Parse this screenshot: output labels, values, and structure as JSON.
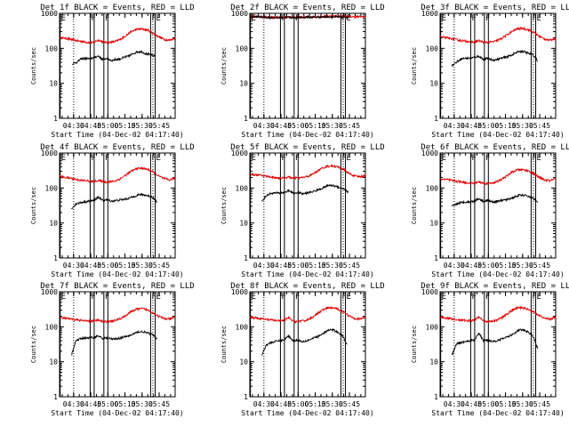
{
  "figure": {
    "title_template": "{det} BLACK = Events, RED = LLD",
    "xlabel": "Start Time (04-Dec-02 04:17:40)",
    "ylabel": "Counts/sec",
    "colors": {
      "events": "#000000",
      "lld": "#e00000",
      "axes": "#000000",
      "background": "#ffffff"
    }
  },
  "chart_data": {
    "type": "line",
    "title": "BLACK = Events, RED = LLD",
    "xlabel": "Start Time (04-Dec-02 04:17:40)",
    "ylabel": "Counts/sec",
    "yscale": "log",
    "ylim": [
      1,
      1000
    ],
    "xlim_minutes": [
      17.67,
      119.0
    ],
    "x_ticks": [
      {
        "minutes": 30,
        "label": "04:30"
      },
      {
        "minutes": 45,
        "label": "04:45"
      },
      {
        "minutes": 60,
        "label": "05:00"
      },
      {
        "minutes": 75,
        "label": "05:15"
      },
      {
        "minutes": 90,
        "label": "05:30"
      },
      {
        "minutes": 105,
        "label": "05:45"
      }
    ],
    "y_ticks": [
      {
        "value": 1,
        "label": "1"
      },
      {
        "value": 10,
        "label": "10"
      },
      {
        "value": 100,
        "label": "100"
      },
      {
        "value": 1000,
        "label": "1000"
      }
    ],
    "markers": [
      {
        "minutes": 18.2,
        "label": "E",
        "style": "solid"
      },
      {
        "minutes": 30.0,
        "label": "",
        "style": "dotted"
      },
      {
        "minutes": 44.5,
        "label": "F",
        "style": "solid"
      },
      {
        "minutes": 48.0,
        "label": "",
        "style": "solid"
      },
      {
        "minutes": 56.5,
        "label": "F",
        "style": "solid"
      },
      {
        "minutes": 60.0,
        "label": "",
        "style": "solid"
      },
      {
        "minutes": 97.5,
        "label": "F",
        "style": "solid"
      },
      {
        "minutes": 101.5,
        "label": "E",
        "style": "solid"
      },
      {
        "minutes": 99.5,
        "label": "",
        "style": "dotted"
      }
    ],
    "panels": [
      {
        "detector": "Det 1f",
        "series": [
          {
            "name": "LLD",
            "color": "red",
            "start": 18,
            "end": 119,
            "values": [
              200,
              195,
              180,
              165,
              158,
              148,
              145,
              172,
              150,
              148,
              155,
              180,
              230,
              300,
              350,
              355,
              330,
              270,
              215,
              180,
              170,
              195
            ]
          },
          {
            "name": "Events",
            "color": "black",
            "start": 29,
            "end": 101,
            "values": [
              36,
              40,
              50,
              52,
              50,
              55,
              60,
              48,
              52,
              45,
              48,
              50,
              55,
              60,
              70,
              80,
              80,
              70,
              65,
              60
            ]
          }
        ]
      },
      {
        "detector": "Det 2f",
        "series": [
          {
            "name": "LLD",
            "color": "red",
            "start": 18,
            "end": 119,
            "values": [
              800,
              800,
              790,
              780,
              770,
              760,
              760,
              780,
              770,
              770,
              780,
              790,
              800,
              810,
              820,
              830,
              820,
              810,
              800,
              800,
              800,
              800
            ]
          },
          {
            "name": "Events",
            "color": "black",
            "start": 18,
            "end": 104,
            "values": [
              810,
              800,
              790,
              780,
              760,
              750,
              760,
              770,
              760,
              760,
              770,
              775,
              780,
              785,
              790,
              800,
              790,
              780,
              775,
              770
            ]
          }
        ]
      },
      {
        "detector": "Det 3f",
        "series": [
          {
            "name": "LLD",
            "color": "red",
            "start": 18,
            "end": 119,
            "values": [
              210,
              200,
              190,
              175,
              165,
              160,
              150,
              165,
              148,
              150,
              158,
              185,
              235,
              300,
              360,
              370,
              340,
              285,
              220,
              185,
              170,
              195
            ]
          },
          {
            "name": "Events",
            "color": "black",
            "start": 28,
            "end": 103,
            "values": [
              32,
              40,
              50,
              52,
              52,
              55,
              60,
              48,
              52,
              46,
              48,
              52,
              56,
              62,
              72,
              82,
              80,
              72,
              65,
              45
            ]
          }
        ]
      },
      {
        "detector": "Det 4f",
        "series": [
          {
            "name": "LLD",
            "color": "red",
            "start": 18,
            "end": 119,
            "values": [
              210,
              200,
              190,
              175,
              165,
              160,
              150,
              165,
              148,
              150,
              158,
              185,
              235,
              300,
              360,
              370,
              340,
              285,
              220,
              185,
              170,
              195
            ]
          },
          {
            "name": "Events",
            "color": "black",
            "start": 28,
            "end": 103,
            "values": [
              25,
              35,
              38,
              40,
              42,
              44,
              55,
              44,
              46,
              42,
              44,
              46,
              48,
              52,
              58,
              64,
              64,
              60,
              55,
              40
            ]
          }
        ]
      },
      {
        "detector": "Det 5f",
        "series": [
          {
            "name": "LLD",
            "color": "red",
            "start": 18,
            "end": 119,
            "values": [
              240,
              240,
              230,
              215,
              205,
              195,
              190,
              205,
              190,
              195,
              205,
              230,
              285,
              360,
              420,
              425,
              400,
              340,
              260,
              220,
              210,
              230
            ]
          },
          {
            "name": "Events",
            "color": "black",
            "start": 28,
            "end": 104,
            "values": [
              40,
              60,
              70,
              72,
              72,
              75,
              85,
              70,
              75,
              68,
              72,
              78,
              85,
              95,
              110,
              120,
              115,
              105,
              95,
              75
            ]
          }
        ]
      },
      {
        "detector": "Det 6f",
        "series": [
          {
            "name": "LLD",
            "color": "red",
            "start": 18,
            "end": 119,
            "values": [
              180,
              175,
              165,
              155,
              148,
              140,
              135,
              150,
              135,
              138,
              145,
              170,
              215,
              280,
              330,
              335,
              310,
              260,
              200,
              170,
              160,
              185
            ]
          },
          {
            "name": "Events",
            "color": "black",
            "start": 28,
            "end": 103,
            "values": [
              30,
              35,
              38,
              40,
              40,
              42,
              50,
              42,
              44,
              40,
              42,
              44,
              46,
              50,
              56,
              62,
              62,
              58,
              52,
              40
            ]
          }
        ]
      },
      {
        "detector": "Det 7f",
        "series": [
          {
            "name": "LLD",
            "color": "red",
            "start": 18,
            "end": 119,
            "values": [
              180,
              175,
              165,
              160,
              150,
              145,
              145,
              155,
              140,
              142,
              150,
              170,
              210,
              270,
              320,
              330,
              300,
              250,
              200,
              170,
              165,
              190
            ]
          },
          {
            "name": "Events",
            "color": "black",
            "start": 28,
            "end": 103,
            "values": [
              15,
              40,
              45,
              48,
              48,
              50,
              55,
              46,
              48,
              44,
              46,
              48,
              52,
              56,
              64,
              72,
              72,
              66,
              60,
              45
            ]
          }
        ]
      },
      {
        "detector": "Det 8f",
        "series": [
          {
            "name": "LLD",
            "color": "red",
            "start": 18,
            "end": 119,
            "values": [
              190,
              180,
              170,
              160,
              155,
              150,
              150,
              180,
              140,
              145,
              150,
              175,
              220,
              290,
              340,
              350,
              320,
              265,
              210,
              175,
              165,
              190
            ]
          },
          {
            "name": "Events",
            "color": "black",
            "start": 28,
            "end": 103,
            "values": [
              15,
              30,
              35,
              38,
              40,
              42,
              55,
              40,
              42,
              38,
              40,
              44,
              50,
              56,
              68,
              82,
              80,
              70,
              55,
              30
            ]
          }
        ]
      },
      {
        "detector": "Det 9f",
        "series": [
          {
            "name": "LLD",
            "color": "red",
            "start": 18,
            "end": 119,
            "values": [
              190,
              180,
              170,
              160,
              155,
              150,
              150,
              190,
              140,
              145,
              150,
              175,
              220,
              290,
              340,
              350,
              320,
              265,
              210,
              175,
              165,
              190
            ]
          },
          {
            "name": "Events",
            "color": "black",
            "start": 28,
            "end": 103,
            "values": [
              15,
              32,
              35,
              38,
              40,
              42,
              65,
              40,
              42,
              38,
              40,
              44,
              50,
              56,
              68,
              82,
              80,
              70,
              55,
              25
            ]
          }
        ]
      }
    ]
  }
}
